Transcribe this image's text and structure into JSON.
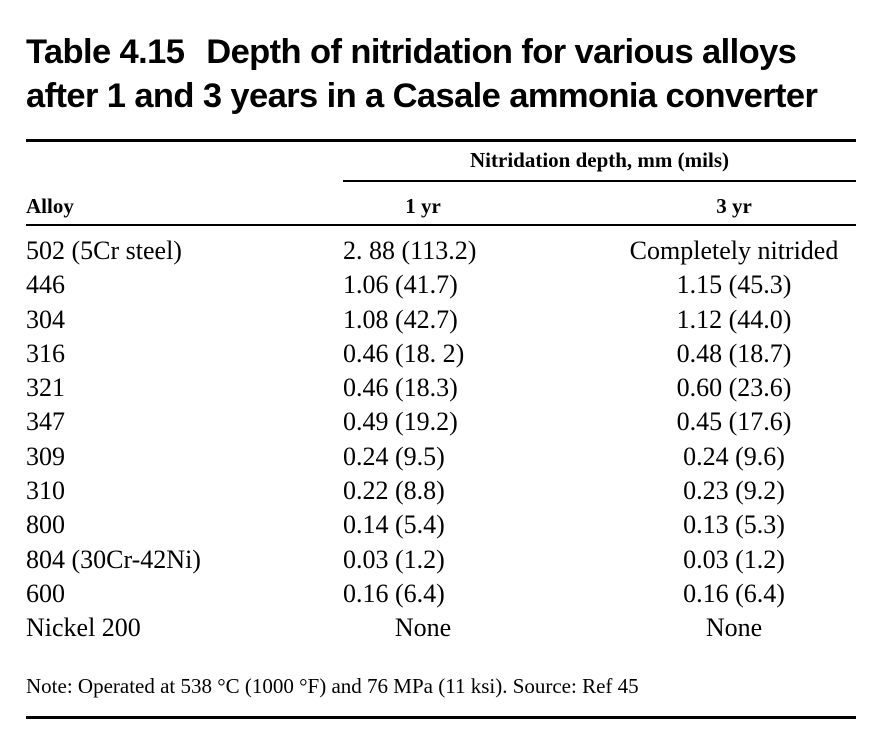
{
  "table": {
    "number": "Table 4.15",
    "title_line1": "Depth of nitridation for various alloys",
    "title_line2": "after 1 and 3 years in a Casale ammonia converter",
    "span_header": "Nitridation depth, mm (mils)",
    "columns": [
      "Alloy",
      "1 yr",
      "3 yr"
    ],
    "rows": [
      {
        "alloy": "502 (5Cr steel)",
        "yr1": "2. 88 (113.2)",
        "yr3": "Completely nitrided"
      },
      {
        "alloy": "446",
        "yr1": "1.06 (41.7)",
        "yr3": "1.15 (45.3)"
      },
      {
        "alloy": "304",
        "yr1": "1.08 (42.7)",
        "yr3": "1.12 (44.0)"
      },
      {
        "alloy": "316",
        "yr1": "0.46 (18. 2)",
        "yr3": "0.48 (18.7)"
      },
      {
        "alloy": "321",
        "yr1": "0.46 (18.3)",
        "yr3": "0.60 (23.6)"
      },
      {
        "alloy": "347",
        "yr1": "0.49 (19.2)",
        "yr3": "0.45 (17.6)"
      },
      {
        "alloy": "309",
        "yr1": "0.24 (9.5)",
        "yr3": "0.24 (9.6)"
      },
      {
        "alloy": "310",
        "yr1": "0.22 (8.8)",
        "yr3": "0.23 (9.2)"
      },
      {
        "alloy": "800",
        "yr1": "0.14 (5.4)",
        "yr3": "0.13 (5.3)"
      },
      {
        "alloy": "804 (30Cr-42Ni)",
        "yr1": "0.03 (1.2)",
        "yr3": "0.03 (1.2)"
      },
      {
        "alloy": "600",
        "yr1": "0.16 (6.4)",
        "yr3": "0.16 (6.4)"
      },
      {
        "alloy": "Nickel 200",
        "yr1": "None",
        "yr3": "None"
      }
    ],
    "note": "Note: Operated at 538 °C (1000 °F) and 76 MPa (11 ksi). Source: Ref 45"
  }
}
